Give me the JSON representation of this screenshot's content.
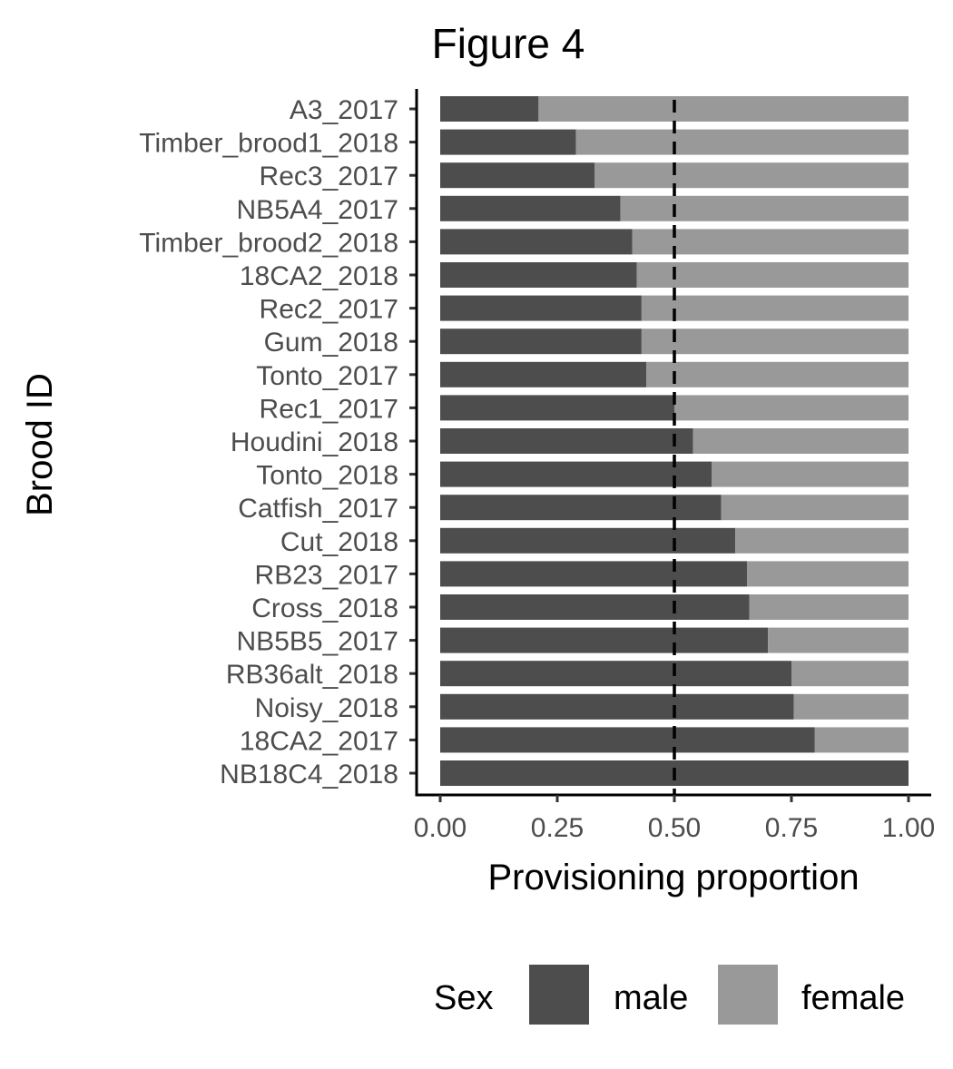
{
  "chart_data": {
    "type": "bar",
    "orientation": "horizontal",
    "stacked": true,
    "title": "Figure 4",
    "xlabel": "Provisioning proportion",
    "ylabel": "Brood ID",
    "xlim": [
      0,
      1
    ],
    "x_ticks": [
      "0.00",
      "0.25",
      "0.50",
      "0.75",
      "1.00"
    ],
    "reference_line": {
      "x": 0.5,
      "style": "dashed"
    },
    "categories": [
      "A3_2017",
      "Timber_brood1_2018",
      "Rec3_2017",
      "NB5A4_2017",
      "Timber_brood2_2018",
      "18CA2_2018",
      "Rec2_2017",
      "Gum_2018",
      "Tonto_2017",
      "Rec1_2017",
      "Houdini_2018",
      "Tonto_2018",
      "Catfish_2017",
      "Cut_2018",
      "RB23_2017",
      "Cross_2018",
      "NB5B5_2017",
      "RB36alt_2018",
      "Noisy_2018",
      "18CA2_2017",
      "NB18C4_2018"
    ],
    "series": [
      {
        "name": "male",
        "color": "#4d4d4d",
        "values": [
          0.21,
          0.29,
          0.33,
          0.385,
          0.41,
          0.42,
          0.43,
          0.43,
          0.44,
          0.5,
          0.54,
          0.58,
          0.6,
          0.63,
          0.655,
          0.66,
          0.7,
          0.75,
          0.755,
          0.8,
          1.0
        ]
      },
      {
        "name": "female",
        "color": "#999999",
        "values": [
          0.79,
          0.71,
          0.67,
          0.615,
          0.59,
          0.58,
          0.57,
          0.57,
          0.56,
          0.5,
          0.46,
          0.42,
          0.4,
          0.37,
          0.345,
          0.34,
          0.3,
          0.25,
          0.245,
          0.2,
          0.0
        ]
      }
    ],
    "legend": {
      "title": "Sex",
      "position": "bottom"
    },
    "grid": false
  }
}
